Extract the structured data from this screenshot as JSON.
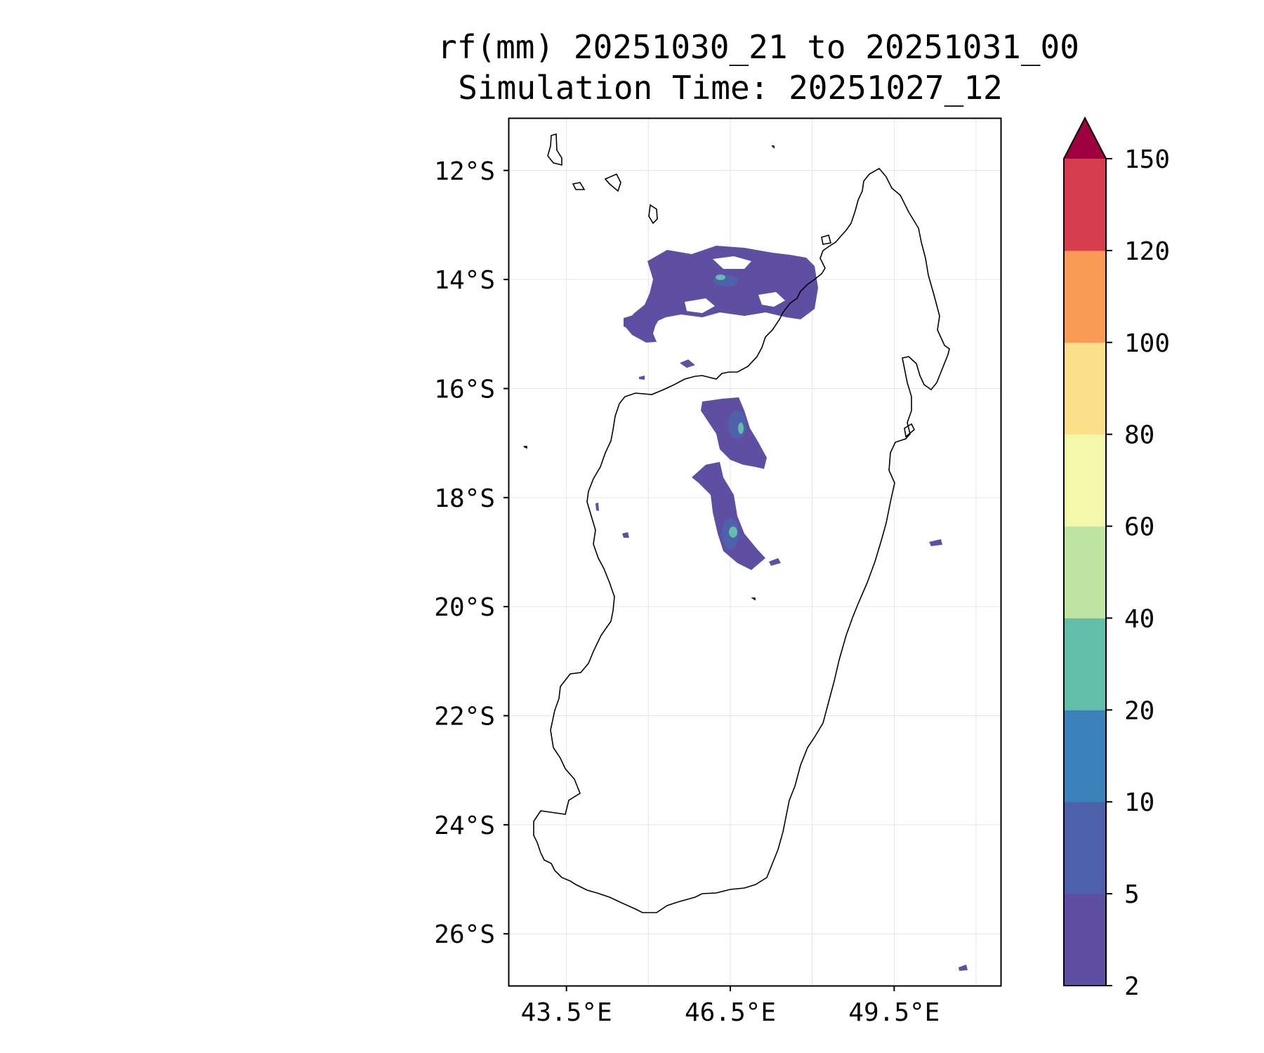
{
  "title": {
    "line1": "rf(mm) 20251030_21 to 20251031_00",
    "line2": "Simulation Time: 20251027_12"
  },
  "map": {
    "lat_ticks": [
      "12°S",
      "14°S",
      "16°S",
      "18°S",
      "20°S",
      "22°S",
      "24°S",
      "26°S"
    ],
    "lon_ticks": [
      "43.5°E",
      "46.5°E",
      "49.5°E"
    ],
    "lat_values": [
      -12,
      -14,
      -16,
      -18,
      -20,
      -22,
      -24,
      -26
    ],
    "lon_values": [
      43.5,
      46.5,
      49.5
    ],
    "extent": {
      "lon_min": 42.45,
      "lon_max": 51.45,
      "lat_max": -11.05,
      "lat_min": -26.95
    },
    "grid": true,
    "land_outline_color": "#000000"
  },
  "colorbar": {
    "levels": [
      "2",
      "5",
      "10",
      "20",
      "40",
      "60",
      "80",
      "100",
      "120",
      "150"
    ],
    "colors": [
      "#5e4fa2",
      "#4e61aa",
      "#3b82ba",
      "#63bea9",
      "#bde4a0",
      "#f2f9ab",
      "#fcdf8a",
      "#fa9a57",
      "#d63e4f"
    ],
    "extend_color": "#9e0142",
    "extend": "max"
  }
}
